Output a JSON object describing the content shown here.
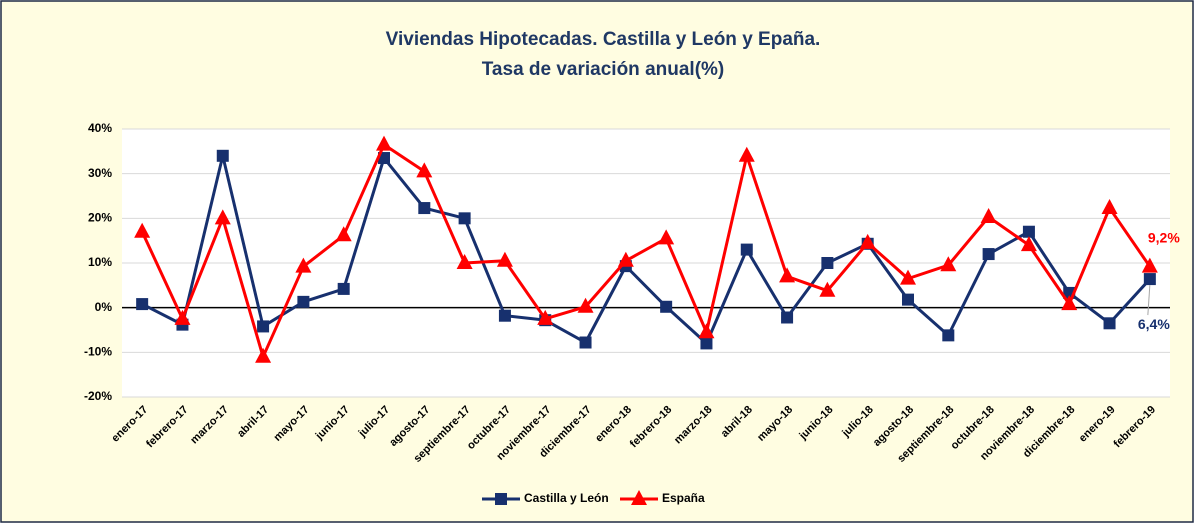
{
  "chart_data": {
    "type": "line",
    "title": "Viviendas Hipotecadas. Castilla y León y Epaña.",
    "subtitle": "Tasa de variación anual(%)",
    "categories": [
      "enero-17",
      "febrero-17",
      "marzo-17",
      "abril-17",
      "mayo-17",
      "junio-17",
      "julio-17",
      "agosto-17",
      "septiembre-17",
      "octubre-17",
      "noviembre-17",
      "diciembre-17",
      "enero-18",
      "febrero-18",
      "marzo-18",
      "abril-18",
      "mayo-18",
      "junio-18",
      "julio-18",
      "agosto-18",
      "septiembre-18",
      "octubre-18",
      "noviembre-18",
      "diciembre-18",
      "enero-19",
      "febrero-19"
    ],
    "series": [
      {
        "name": "Castilla y León",
        "color": "#17306e",
        "marker": "square",
        "values": [
          0.8,
          -3.8,
          34,
          -4.2,
          1.3,
          4.2,
          33.5,
          22.3,
          20,
          -1.8,
          -2.8,
          -7.8,
          9.3,
          0.2,
          -8,
          13,
          -2.2,
          10,
          14.3,
          1.8,
          -6.2,
          12,
          17,
          3.3,
          -3.5,
          6.4
        ],
        "value_labels": [
          null,
          null,
          null,
          null,
          null,
          null,
          null,
          null,
          null,
          null,
          null,
          null,
          null,
          null,
          null,
          null,
          null,
          null,
          null,
          null,
          null,
          null,
          null,
          null,
          null,
          "6,4%"
        ]
      },
      {
        "name": "España",
        "color": "#ff0000",
        "marker": "triangle",
        "values": [
          17,
          -2.5,
          20,
          -11,
          9.2,
          16.2,
          36.5,
          30.5,
          10,
          10.5,
          -2.5,
          0.2,
          10.5,
          15.5,
          -5.5,
          34,
          7,
          3.8,
          14.5,
          6.5,
          9.5,
          20.3,
          14,
          0.8,
          22.3,
          9.2
        ],
        "value_labels": [
          null,
          null,
          null,
          null,
          null,
          null,
          null,
          null,
          null,
          null,
          null,
          null,
          null,
          null,
          null,
          null,
          null,
          null,
          null,
          null,
          null,
          null,
          null,
          null,
          null,
          "9,2%"
        ]
      }
    ],
    "ylim": [
      -20,
      40
    ],
    "yticks": [
      {
        "value": -20,
        "label": "-20%"
      },
      {
        "value": -10,
        "label": "-10%"
      },
      {
        "value": 0,
        "label": "0%"
      },
      {
        "value": 10,
        "label": "10%"
      },
      {
        "value": 20,
        "label": "20%"
      },
      {
        "value": 30,
        "label": "30%"
      },
      {
        "value": 40,
        "label": "40%"
      }
    ],
    "grid": true,
    "legend": "bottom"
  }
}
